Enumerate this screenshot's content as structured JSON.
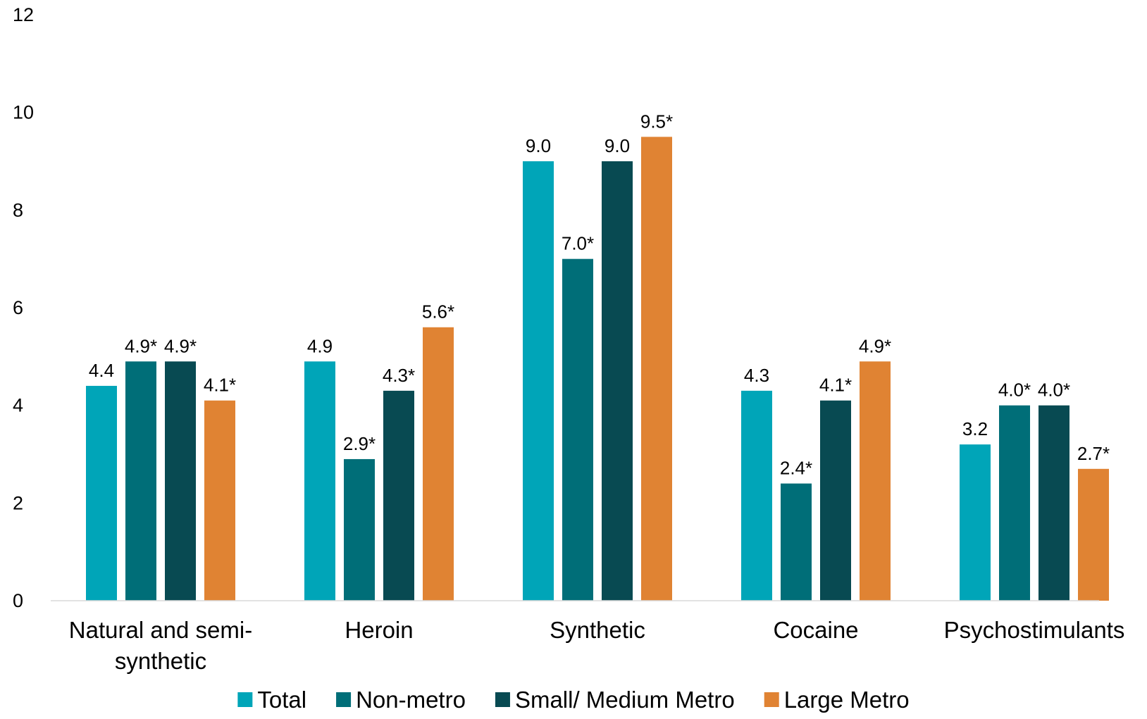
{
  "chart_data": {
    "type": "bar",
    "title": "",
    "xlabel": "",
    "ylabel": "",
    "ylim": [
      0,
      12
    ],
    "yticks": [
      0,
      2,
      4,
      6,
      8,
      10,
      12
    ],
    "grid": false,
    "legend_position": "bottom",
    "categories": [
      [
        "Natural and semi-",
        "synthetic"
      ],
      [
        "Heroin"
      ],
      [
        "Synthetic"
      ],
      [
        "Cocaine"
      ],
      [
        "Psychostimulants"
      ]
    ],
    "series": [
      {
        "name": "Total",
        "color": "#00A5B8",
        "values": [
          4.4,
          4.9,
          9.0,
          4.3,
          3.2
        ],
        "labels": [
          "4.4",
          "4.9",
          "9.0",
          "4.3",
          "3.2"
        ]
      },
      {
        "name": "Non-metro",
        "color": "#006E78",
        "values": [
          4.9,
          2.9,
          7.0,
          2.4,
          4.0
        ],
        "labels": [
          "4.9*",
          "2.9*",
          "7.0*",
          "2.4*",
          "4.0*"
        ]
      },
      {
        "name": "Small/ Medium Metro",
        "color": "#084A52",
        "values": [
          4.9,
          4.3,
          9.0,
          4.1,
          4.0
        ],
        "labels": [
          "4.9*",
          "4.3*",
          "9.0",
          "4.1*",
          "4.0*"
        ]
      },
      {
        "name": "Large Metro",
        "color": "#E08333",
        "values": [
          4.1,
          5.6,
          9.5,
          4.9,
          2.7
        ],
        "labels": [
          "4.1*",
          "5.6*",
          "9.5*",
          "4.9*",
          "2.7*"
        ]
      }
    ]
  }
}
